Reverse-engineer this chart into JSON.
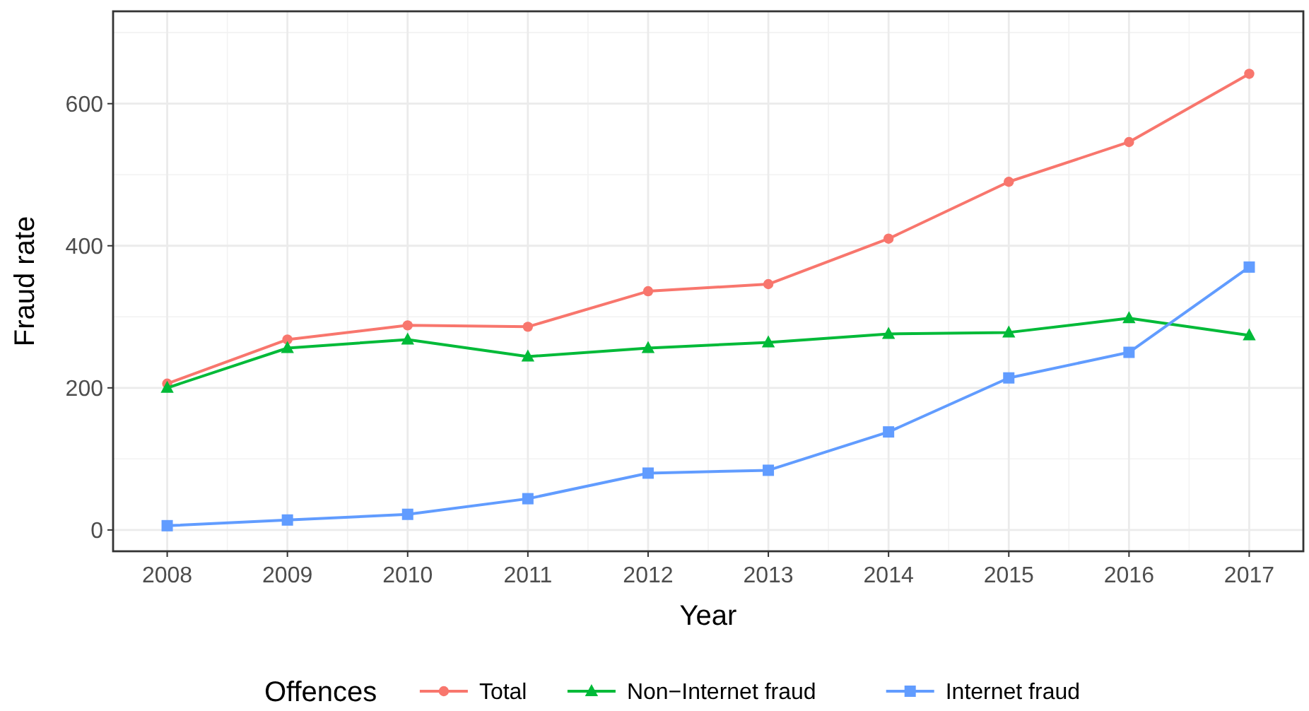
{
  "chart_data": {
    "type": "line",
    "xlabel": "Year",
    "ylabel": "Fraud rate",
    "legend_title": "Offences",
    "legend": "bottom",
    "grid": true,
    "x": [
      2008,
      2009,
      2010,
      2011,
      2012,
      2013,
      2014,
      2015,
      2016,
      2017
    ],
    "xlim": [
      2007.55,
      2017.45
    ],
    "xticks": [
      2008,
      2009,
      2010,
      2011,
      2012,
      2013,
      2014,
      2015,
      2016,
      2017
    ],
    "ylim": [
      -30,
      730
    ],
    "yticks": [
      0,
      200,
      400,
      600
    ],
    "series": [
      {
        "name": "Total",
        "color": "#f8766d",
        "marker": "circle",
        "values": [
          206,
          268,
          288,
          286,
          336,
          346,
          410,
          490,
          546,
          642
        ]
      },
      {
        "name": "Non−Internet fraud",
        "color": "#00ba38",
        "marker": "triangle",
        "values": [
          200,
          256,
          268,
          244,
          256,
          264,
          276,
          278,
          298,
          274
        ]
      },
      {
        "name": "Internet fraud",
        "color": "#619cff",
        "marker": "square",
        "values": [
          6,
          14,
          22,
          44,
          80,
          84,
          138,
          214,
          250,
          370
        ]
      }
    ]
  }
}
